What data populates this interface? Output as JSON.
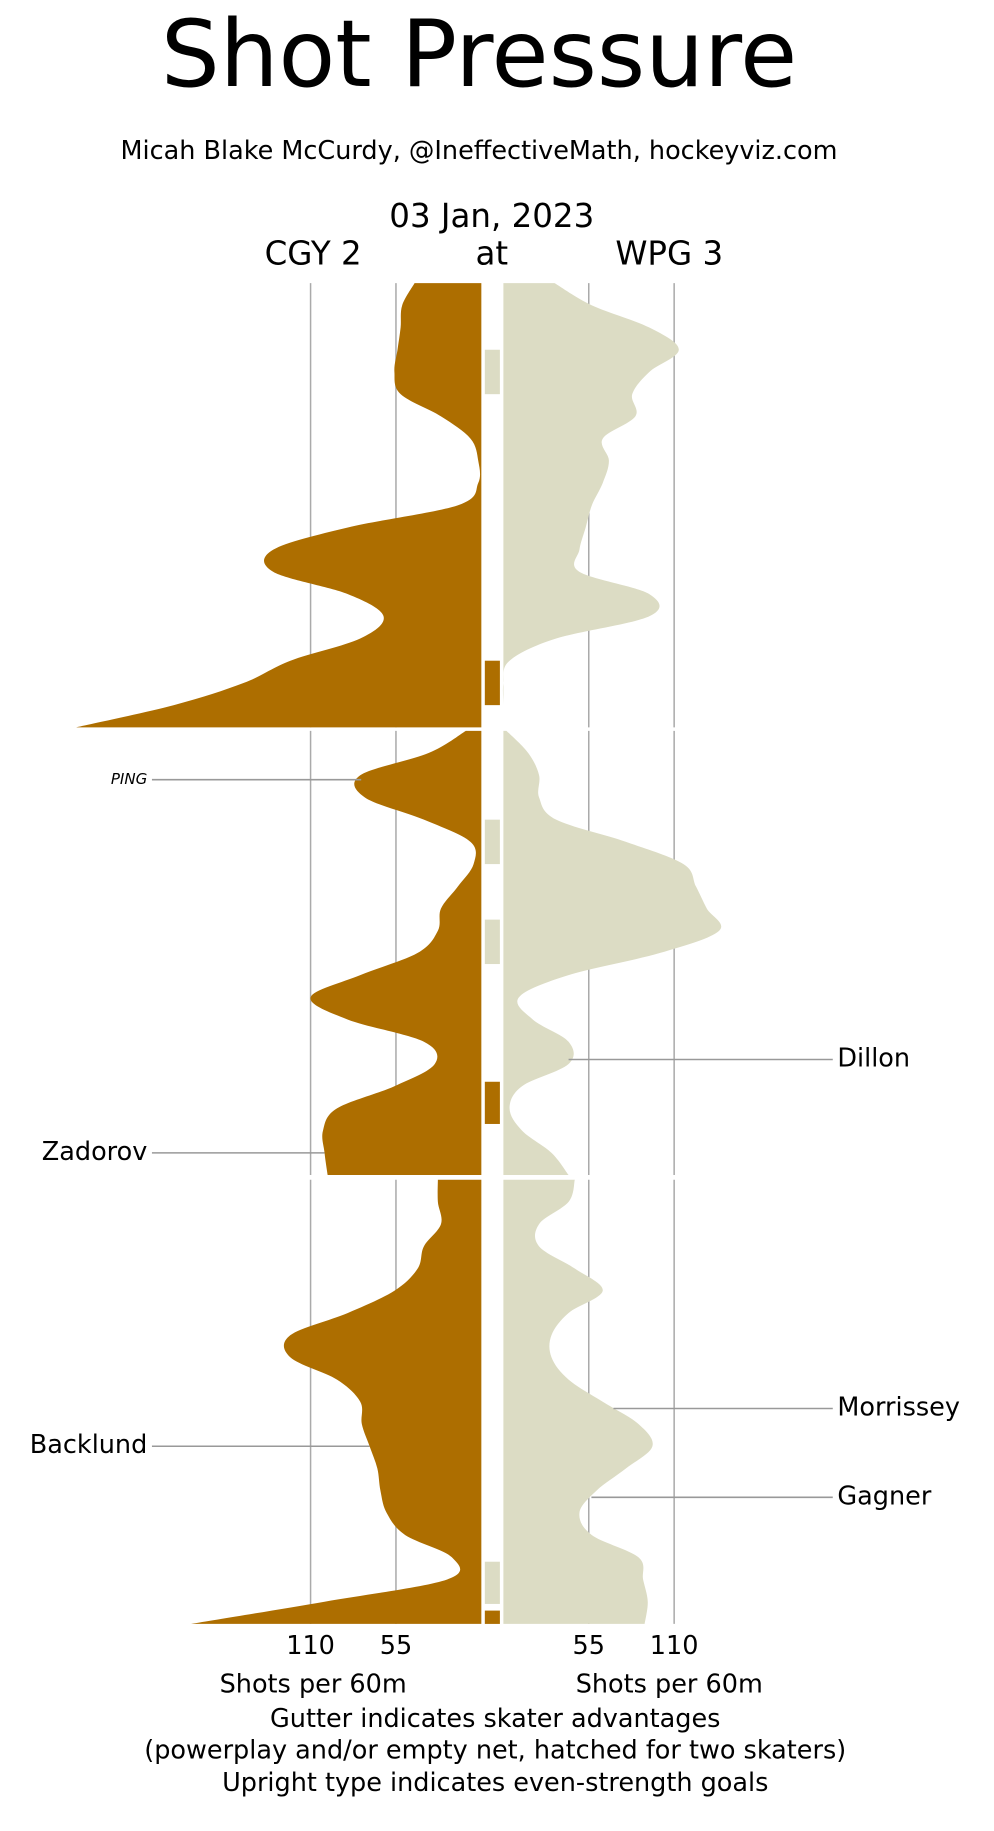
{
  "chart_data": {
    "type": "mirrored-area",
    "title": "Shot Pressure",
    "subtitle": "Micah Blake McCurdy, @IneffectiveMath, hockeyviz.com",
    "date": "03 Jan, 2023",
    "separator": "at",
    "xlabel": "Shots per 60m",
    "footnote": [
      "Gutter indicates skater advantages",
      "(powerplay and/or empty net, hatched for two skaters)",
      "Upright type indicates even-strength goals"
    ],
    "xlim": [
      0,
      260
    ],
    "xticks": [
      55,
      110
    ],
    "grid": true,
    "x": [
      0,
      1,
      2,
      3,
      4,
      5,
      6,
      7,
      8,
      9,
      10,
      11,
      12,
      13,
      14,
      15,
      16,
      17,
      18,
      19,
      20,
      20,
      21,
      22,
      23,
      24,
      25,
      26,
      27,
      28,
      29,
      30,
      31,
      32,
      33,
      34,
      35,
      36,
      37,
      38,
      39,
      40,
      40,
      41,
      42,
      43,
      44,
      45,
      46,
      47,
      48,
      49,
      50,
      51,
      52,
      53,
      54,
      55,
      56,
      57,
      58,
      59,
      60
    ],
    "series": [
      {
        "name": "CGY 2",
        "color": "#ad6e00",
        "values": [
          43,
          51,
          52,
          54,
          56,
          52,
          26,
          7,
          2,
          2,
          15,
          86,
          134,
          134,
          86,
          63,
          78,
          123,
          153,
          198,
          261,
          10,
          34,
          78,
          75,
          37,
          7,
          5,
          15,
          26,
          28,
          41,
          78,
          110,
          86,
          37,
          30,
          56,
          93,
          102,
          101,
          99,
          28,
          28,
          26,
          37,
          41,
          56,
          86,
          123,
          123,
          93,
          78,
          77,
          72,
          67,
          65,
          61,
          49,
          19,
          22,
          101,
          187
        ],
        "powerplays": [
          [
            17,
            19
          ],
          [
            35.8,
            37.7
          ],
          [
            59.4,
            60
          ]
        ],
        "goals": [
          {
            "label": "PING",
            "minute": 22.2,
            "even_strength": false
          },
          {
            "label": "Zadorov",
            "minute": 39.0,
            "even_strength": true
          },
          {
            "label": "Backlund",
            "minute": 52.0,
            "even_strength": true
          }
        ]
      },
      {
        "name": "WPG 3",
        "color": "#dcdcc4",
        "values": [
          33,
          57,
          94,
          113,
          94,
          83,
          85,
          64,
          68,
          64,
          57,
          53,
          49,
          49,
          94,
          94,
          34,
          4,
          0,
          0,
          0,
          2,
          16,
          23,
          23,
          34,
          79,
          116,
          124,
          131,
          139,
          101,
          42,
          10,
          19,
          42,
          42,
          12,
          4,
          12,
          31,
          42,
          46,
          42,
          23,
          23,
          46,
          64,
          42,
          31,
          31,
          42,
          64,
          87,
          96,
          79,
          60,
          49,
          57,
          87,
          90,
          93,
          91
        ],
        "powerplays": [
          [
            3,
            5
          ],
          [
            24,
            26
          ],
          [
            28.5,
            30.5
          ],
          [
            57.2,
            59.1
          ]
        ],
        "goals": [
          {
            "label": "Dillon",
            "minute": 34.8,
            "even_strength": true
          },
          {
            "label": "Morrissey",
            "minute": 50.3,
            "even_strength": true
          },
          {
            "label": "Gagner",
            "minute": 54.3,
            "even_strength": true
          }
        ]
      }
    ]
  }
}
